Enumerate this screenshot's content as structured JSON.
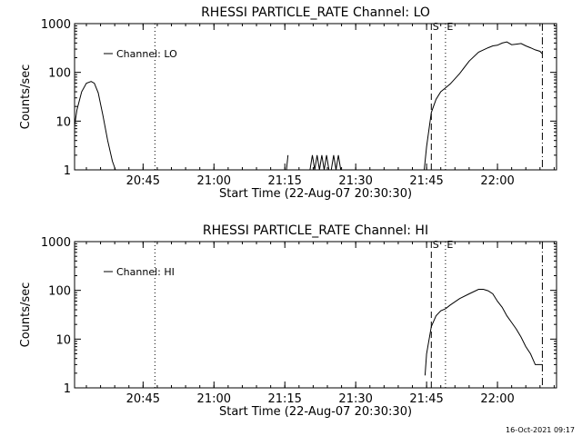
{
  "footer_stamp": "16-Oct-2021 09:17",
  "chart_data": [
    {
      "type": "line",
      "title": "RHESSI PARTICLE_RATE Channel: LO",
      "xlabel": "Start Time (22-Aug-07 20:30:30)",
      "ylabel": "Counts/sec",
      "yscale": "log",
      "ylim": [
        1,
        1000
      ],
      "xlim": [
        "20:30:30",
        "22:12:30"
      ],
      "x_ticks": [
        "20:45",
        "21:00",
        "21:15",
        "21:30",
        "21:45",
        "22:00"
      ],
      "y_ticks": [
        "1",
        "10",
        "100",
        "1000"
      ],
      "legend": {
        "label": "Channel: LO",
        "placement": "top-left"
      },
      "markers": [
        {
          "label": "S",
          "time": "21:46:00",
          "style": "dashed"
        },
        {
          "label": "E",
          "time": "21:49:00",
          "style": "dotted"
        },
        {
          "label": "",
          "time": "20:47:30",
          "style": "dotted"
        },
        {
          "label": "",
          "time": "22:09:30",
          "style": "dash-dot"
        }
      ],
      "series": [
        {
          "name": "Channel: LO",
          "segments": [
            {
              "x": [
                "20:30:30",
                "20:31:00",
                "20:32:00",
                "20:33:00",
                "20:34:00",
                "20:34:40",
                "20:35:30",
                "20:36:30",
                "20:37:30",
                "20:38:30",
                "20:39:10"
              ],
              "y": [
                8,
                17,
                40,
                60,
                65,
                60,
                38,
                13,
                4,
                1.5,
                1
              ]
            },
            {
              "x": [
                "21:15:20",
                "21:15:40"
              ],
              "y": [
                1,
                2
              ]
            },
            {
              "x": [
                "21:20:20",
                "21:20:50",
                "21:21:20",
                "21:21:50",
                "21:22:20",
                "21:22:50",
                "21:23:20",
                "21:23:50",
                "21:24:20",
                "21:24:50",
                "21:25:20",
                "21:25:50",
                "21:26:20",
                "21:26:50"
              ],
              "y": [
                1,
                2,
                1,
                2,
                1,
                2,
                1,
                2,
                1,
                1,
                2,
                1,
                2,
                1
              ]
            },
            {
              "x": [
                "21:44:30",
                "21:45:00",
                "21:46:00",
                "21:47:00",
                "21:48:00",
                "21:49:00",
                "21:50:00",
                "21:52:00",
                "21:54:00",
                "21:56:00",
                "21:58:00",
                "21:59:00",
                "22:00:00",
                "22:01:00",
                "22:02:00",
                "22:03:00",
                "22:04:00",
                "22:05:00",
                "22:06:00",
                "22:07:00",
                "22:08:00",
                "22:09:00",
                "22:09:30"
              ],
              "y": [
                1,
                3,
                15,
                28,
                40,
                48,
                58,
                95,
                170,
                260,
                320,
                350,
                360,
                400,
                420,
                370,
                380,
                390,
                350,
                320,
                290,
                270,
                240
              ]
            }
          ]
        }
      ]
    },
    {
      "type": "line",
      "title": "RHESSI PARTICLE_RATE Channel: HI",
      "xlabel": "Start Time (22-Aug-07 20:30:30)",
      "ylabel": "Counts/sec",
      "yscale": "log",
      "ylim": [
        1,
        1000
      ],
      "xlim": [
        "20:30:30",
        "22:12:30"
      ],
      "x_ticks": [
        "20:45",
        "21:00",
        "21:15",
        "21:30",
        "21:45",
        "22:00"
      ],
      "y_ticks": [
        "1",
        "10",
        "100",
        "1000"
      ],
      "legend": {
        "label": "Channel: HI",
        "placement": "top-left"
      },
      "markers": [
        {
          "label": "S",
          "time": "21:46:00",
          "style": "dashed"
        },
        {
          "label": "E",
          "time": "21:49:00",
          "style": "dotted"
        },
        {
          "label": "",
          "time": "20:47:30",
          "style": "dotted"
        },
        {
          "label": "",
          "time": "22:09:30",
          "style": "dash-dot"
        }
      ],
      "series": [
        {
          "name": "Channel: HI",
          "segments": [
            {
              "x": [
                "21:44:40",
                "21:45:00",
                "21:46:00",
                "21:47:00",
                "21:48:00",
                "21:49:00",
                "21:50:00",
                "21:52:00",
                "21:54:00",
                "21:56:00",
                "21:57:00",
                "21:58:00",
                "21:59:00",
                "22:00:00",
                "22:01:00",
                "22:02:00",
                "22:03:00",
                "22:04:00",
                "22:05:00",
                "22:06:00",
                "22:07:00",
                "22:08:00",
                "22:09:00",
                "22:09:30"
              ],
              "y": [
                1.8,
                5,
                18,
                30,
                38,
                42,
                50,
                68,
                85,
                105,
                105,
                98,
                85,
                60,
                45,
                30,
                22,
                16,
                11,
                7,
                5,
                3,
                3,
                3
              ]
            }
          ]
        }
      ]
    }
  ]
}
